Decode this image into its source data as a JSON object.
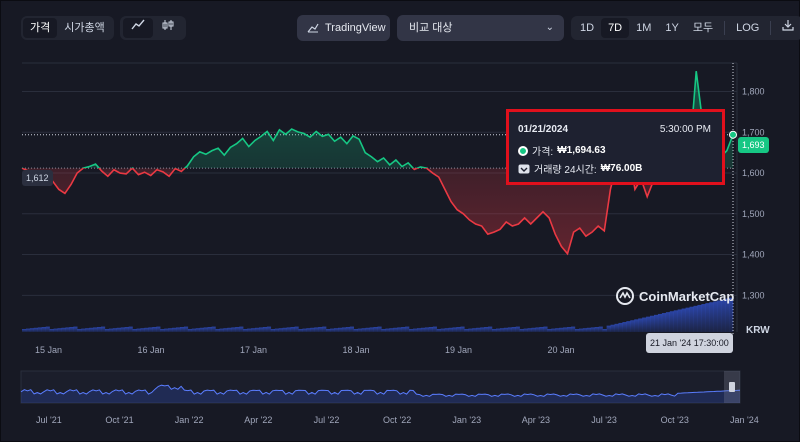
{
  "toolbar": {
    "view_tabs": [
      {
        "label": "가격",
        "active": true
      },
      {
        "label": "시가총액",
        "active": false
      }
    ],
    "chart_type_icons": [
      "line-chart-icon",
      "candlestick-icon"
    ],
    "tradingview_label": "TradingView",
    "compare_placeholder": "비교 대상",
    "range_tabs": [
      {
        "label": "1D",
        "active": false
      },
      {
        "label": "7D",
        "active": true
      },
      {
        "label": "1M",
        "active": false
      },
      {
        "label": "1Y",
        "active": false
      },
      {
        "label": "모두",
        "active": false
      }
    ],
    "log_label": "LOG",
    "download_icon": "download-icon"
  },
  "tooltip": {
    "date": "01/21/2024",
    "time": "5:30:00 PM",
    "price_label": "가격:",
    "price_value": "₩1,694.63",
    "volume_label": "거래량 24시간:",
    "volume_value": "₩76.00B"
  },
  "price_tags": {
    "left": "1,612",
    "right": "1,693",
    "crosshair_date": "21 Jan '24 17:30:00"
  },
  "currency_label": "KRW",
  "watermark": "CoinMarketCap",
  "colors": {
    "up": "#16c784",
    "down": "#ea3943",
    "volume": "#3861fb",
    "tooltip_border": "#e0101c"
  },
  "chart_data": {
    "type": "line",
    "y_ticks": [
      "1,800",
      "1,700",
      "1,600",
      "1,500",
      "1,400",
      "1,300"
    ],
    "y_tick_values": [
      1800,
      1700,
      1600,
      1500,
      1400,
      1300
    ],
    "ylim": [
      1210,
      1870
    ],
    "baseline": 1612,
    "x_ticks": [
      "15 Jan",
      "16 Jan",
      "17 Jan",
      "18 Jan",
      "19 Jan",
      "20 Jan",
      "21 Jan"
    ],
    "series": [
      {
        "values": [
          1612,
          1605,
          1598,
          1602,
          1590,
          1580,
          1560,
          1550,
          1572,
          1600,
          1612,
          1616,
          1622,
          1605,
          1592,
          1608,
          1600,
          1598,
          1612,
          1596,
          1602,
          1594,
          1608,
          1603,
          1592,
          1611,
          1604,
          1618,
          1640,
          1652,
          1646,
          1655,
          1661,
          1644,
          1663,
          1672,
          1685,
          1665,
          1680,
          1690,
          1702,
          1680,
          1706,
          1695,
          1708,
          1701,
          1697,
          1688,
          1702,
          1690,
          1695,
          1678,
          1688,
          1672,
          1691,
          1683,
          1650,
          1640,
          1628,
          1637,
          1620,
          1632,
          1616,
          1625,
          1609,
          1615,
          1612,
          1600,
          1590,
          1560,
          1530,
          1510,
          1500,
          1485,
          1475,
          1470,
          1450,
          1455,
          1462,
          1480,
          1470,
          1475,
          1490,
          1475,
          1490,
          1505,
          1490,
          1450,
          1420,
          1402,
          1455,
          1465,
          1445,
          1455,
          1470,
          1458,
          1560,
          1620,
          1650,
          1655,
          1560,
          1585,
          1542,
          1580,
          1610,
          1626,
          1605,
          1625,
          1640,
          1660,
          1850,
          1730,
          1675,
          1660,
          1640,
          1655,
          1694
        ]
      }
    ],
    "volume_note": "24h volume bars along bottom of price chart",
    "navigator": {
      "type": "area",
      "x_ticks": [
        "Jul '21",
        "Oct '21",
        "Jan '22",
        "Apr '22",
        "Jul '22",
        "Oct '22",
        "Jan '23",
        "Apr '23",
        "Jul '23",
        "Oct '23",
        "Jan '24"
      ]
    }
  }
}
